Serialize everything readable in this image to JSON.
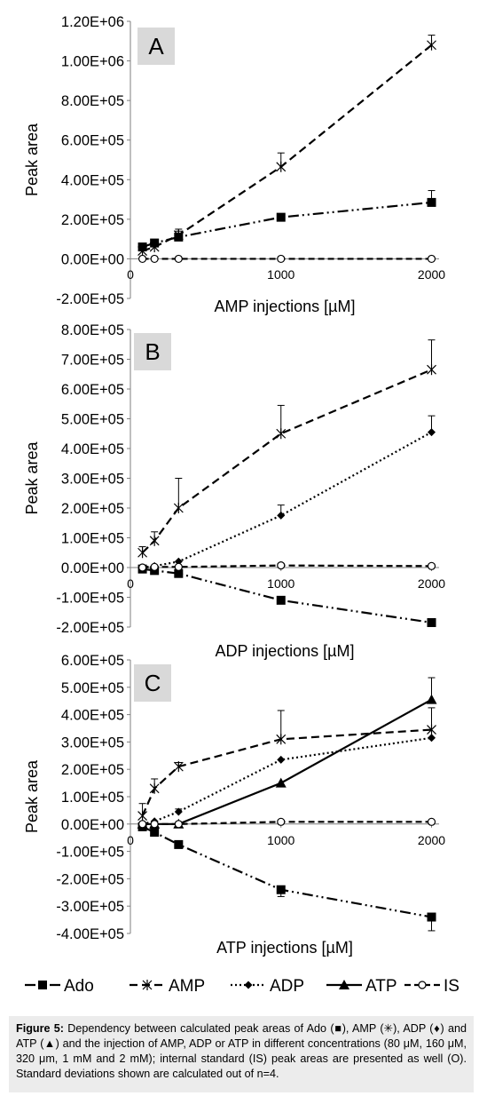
{
  "styles": {
    "Ado": {
      "marker": "square",
      "dash": "12 4 2 4 2 4"
    },
    "AMP": {
      "marker": "star",
      "dash": "9 5"
    },
    "ADP": {
      "marker": "diamond",
      "dash": "2 3"
    },
    "ATP": {
      "marker": "triangle",
      "dash": ""
    },
    "IS": {
      "marker": "circle",
      "dash": "7 4"
    }
  },
  "colors": {
    "line": "#000000",
    "axis": "#7f7f7f",
    "panel_label_bg": "#d9d9d9"
  },
  "legend": {
    "entries": [
      "Ado",
      "AMP",
      "ADP",
      "ATP",
      "IS"
    ],
    "placement": "bottom"
  },
  "chart_data": [
    {
      "type": "line",
      "panel_label": "A",
      "xlabel": "AMP injections [µM]",
      "ylabel": "Peak area",
      "x_ticks": [
        0,
        1000,
        2000
      ],
      "x_tick_labels": [
        "0",
        "1000",
        "2000"
      ],
      "ylim": [
        -200000,
        1200000
      ],
      "y_ticks": [
        -200000,
        0,
        200000,
        400000,
        600000,
        800000,
        1000000,
        1200000
      ],
      "y_tick_labels": [
        "-2.00E+05",
        "0.00E+00",
        "2.00E+05",
        "4.00E+05",
        "6.00E+05",
        "8.00E+05",
        "1.00E+06",
        "1.20E+06"
      ],
      "x": [
        80,
        160,
        320,
        1000,
        2000
      ],
      "series": [
        {
          "name": "Ado",
          "values": [
            60000,
            80000,
            110000,
            210000,
            285000
          ],
          "errors": [
            0,
            0,
            30000,
            0,
            60000
          ]
        },
        {
          "name": "AMP",
          "values": [
            40000,
            60000,
            120000,
            465000,
            1080000
          ],
          "errors": [
            20000,
            20000,
            30000,
            70000,
            50000
          ]
        },
        {
          "name": "IS",
          "values": [
            0,
            0,
            0,
            0,
            0
          ],
          "errors": [
            0,
            0,
            0,
            0,
            0
          ]
        }
      ]
    },
    {
      "type": "line",
      "panel_label": "B",
      "xlabel": "ADP injections [µM]",
      "ylabel": "Peak area",
      "x_ticks": [
        0,
        1000,
        2000
      ],
      "x_tick_labels": [
        "0",
        "1000",
        "2000"
      ],
      "ylim": [
        -200000,
        800000
      ],
      "y_ticks": [
        -200000,
        -100000,
        0,
        100000,
        200000,
        300000,
        400000,
        500000,
        600000,
        700000,
        800000
      ],
      "y_tick_labels": [
        "-2.00E+05",
        "-1.00E+05",
        "0.00E+00",
        "1.00E+05",
        "2.00E+05",
        "3.00E+05",
        "4.00E+05",
        "5.00E+05",
        "6.00E+05",
        "7.00E+05",
        "8.00E+05"
      ],
      "x": [
        80,
        160,
        320,
        1000,
        2000
      ],
      "series": [
        {
          "name": "Ado",
          "values": [
            -5000,
            -10000,
            -20000,
            -110000,
            -185000
          ],
          "errors": [
            0,
            0,
            0,
            0,
            0
          ]
        },
        {
          "name": "AMP",
          "values": [
            50000,
            90000,
            200000,
            450000,
            665000
          ],
          "errors": [
            20000,
            30000,
            100000,
            95000,
            100000
          ]
        },
        {
          "name": "ADP",
          "values": [
            0,
            5000,
            20000,
            175000,
            455000
          ],
          "errors": [
            0,
            0,
            0,
            35000,
            55000
          ]
        },
        {
          "name": "IS",
          "values": [
            0,
            2000,
            2000,
            7000,
            5000
          ],
          "errors": [
            0,
            0,
            0,
            6000,
            6000
          ]
        }
      ]
    },
    {
      "type": "line",
      "panel_label": "C",
      "xlabel": "ATP injections [µM]",
      "ylabel": "Peak area",
      "x_ticks": [
        0,
        1000,
        2000
      ],
      "x_tick_labels": [
        "0",
        "1000",
        "2000"
      ],
      "ylim": [
        -400000,
        600000
      ],
      "y_ticks": [
        -400000,
        -300000,
        -200000,
        -100000,
        0,
        100000,
        200000,
        300000,
        400000,
        500000,
        600000
      ],
      "y_tick_labels": [
        "-4.00E+05",
        "-3.00E+05",
        "-2.00E+05",
        "-1.00E+05",
        "0.00E+00",
        "1.00E+05",
        "2.00E+05",
        "3.00E+05",
        "4.00E+05",
        "5.00E+05",
        "6.00E+05"
      ],
      "x": [
        80,
        160,
        320,
        1000,
        2000
      ],
      "series": [
        {
          "name": "Ado",
          "values": [
            -10000,
            -30000,
            -75000,
            -240000,
            -340000
          ],
          "errors": [
            0,
            0,
            0,
            25000,
            50000
          ]
        },
        {
          "name": "AMP",
          "values": [
            30000,
            130000,
            210000,
            310000,
            345000
          ],
          "errors": [
            45000,
            35000,
            15000,
            105000,
            80000
          ]
        },
        {
          "name": "ADP",
          "values": [
            0,
            10000,
            45000,
            235000,
            315000
          ],
          "errors": [
            0,
            0,
            10000,
            0,
            0
          ]
        },
        {
          "name": "ATP",
          "values": [
            0,
            0,
            0,
            150000,
            455000
          ],
          "errors": [
            0,
            0,
            0,
            0,
            80000
          ]
        },
        {
          "name": "IS",
          "values": [
            0,
            0,
            0,
            8000,
            8000
          ],
          "errors": [
            0,
            0,
            0,
            6000,
            6000
          ]
        }
      ]
    }
  ],
  "caption": {
    "label": "Figure 5:",
    "text": " Dependency between calculated peak areas of Ado (■), AMP (✳), ADP (♦) and ATP (▲) and the injection of AMP, ADP or ATP in different concentrations (80 μM, 160 μM, 320 μm, 1 mM and 2 mM); internal standard (IS) peak areas are presented as well (O). Standard deviations shown are calculated out of n=4."
  }
}
